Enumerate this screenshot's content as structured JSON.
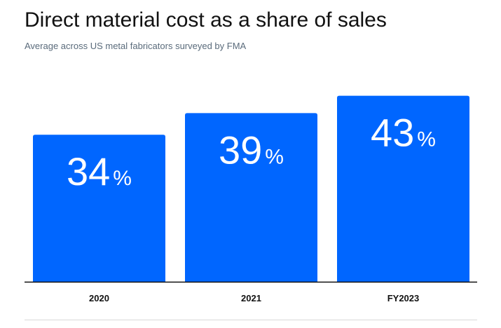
{
  "chart_data": {
    "type": "bar",
    "title": "Direct material cost as a share of sales",
    "subtitle": "Average across US metal fabricators surveyed by FMA",
    "categories": [
      "2020",
      "2021",
      "FY2023"
    ],
    "values": [
      34,
      39,
      43
    ],
    "value_suffix": "%",
    "xlabel": "",
    "ylabel": "",
    "ylim": [
      0,
      47
    ],
    "grid": false,
    "legend": "none",
    "bar_color": "#0066ff",
    "axis_color": "#111111",
    "footer_rule_color": "#d9d9d9"
  }
}
